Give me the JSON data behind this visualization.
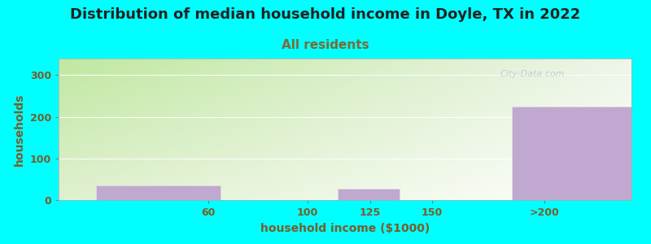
{
  "title": "Distribution of median household income in Doyle, TX in 2022",
  "subtitle": "All residents",
  "xlabel": "household income ($1000)",
  "ylabel": "households",
  "background_color": "#00ffff",
  "bar_color": "#c0a8d0",
  "bar_edge_color": "#e0e0e0",
  "title_color": "#222222",
  "subtitle_color": "#7a6a3a",
  "axis_label_color": "#7a5c2a",
  "tick_label_color": "#7a5c2a",
  "watermark": "City-Data.com",
  "bar_lefts": [
    15,
    65,
    112,
    137,
    182
  ],
  "bar_widths": [
    50,
    3,
    25,
    3,
    55
  ],
  "bar_heights": [
    35,
    0,
    28,
    0,
    225
  ],
  "xtick_positions": [
    60,
    100,
    125,
    150,
    195
  ],
  "xtick_labels": [
    "60",
    "100",
    "125",
    "150",
    ">200"
  ],
  "ylim": [
    0,
    340
  ],
  "xlim": [
    0,
    230
  ],
  "yticks": [
    0,
    100,
    200,
    300
  ],
  "plot_bg_color_topleft": "#c8e8a8",
  "plot_bg_color_topright": "#e8f0e0",
  "plot_bg_color_bottomleft": "#e0f0d0",
  "plot_bg_color_bottomright": "#ffffff",
  "title_fontsize": 13,
  "subtitle_fontsize": 11,
  "label_fontsize": 10,
  "tick_fontsize": 9
}
